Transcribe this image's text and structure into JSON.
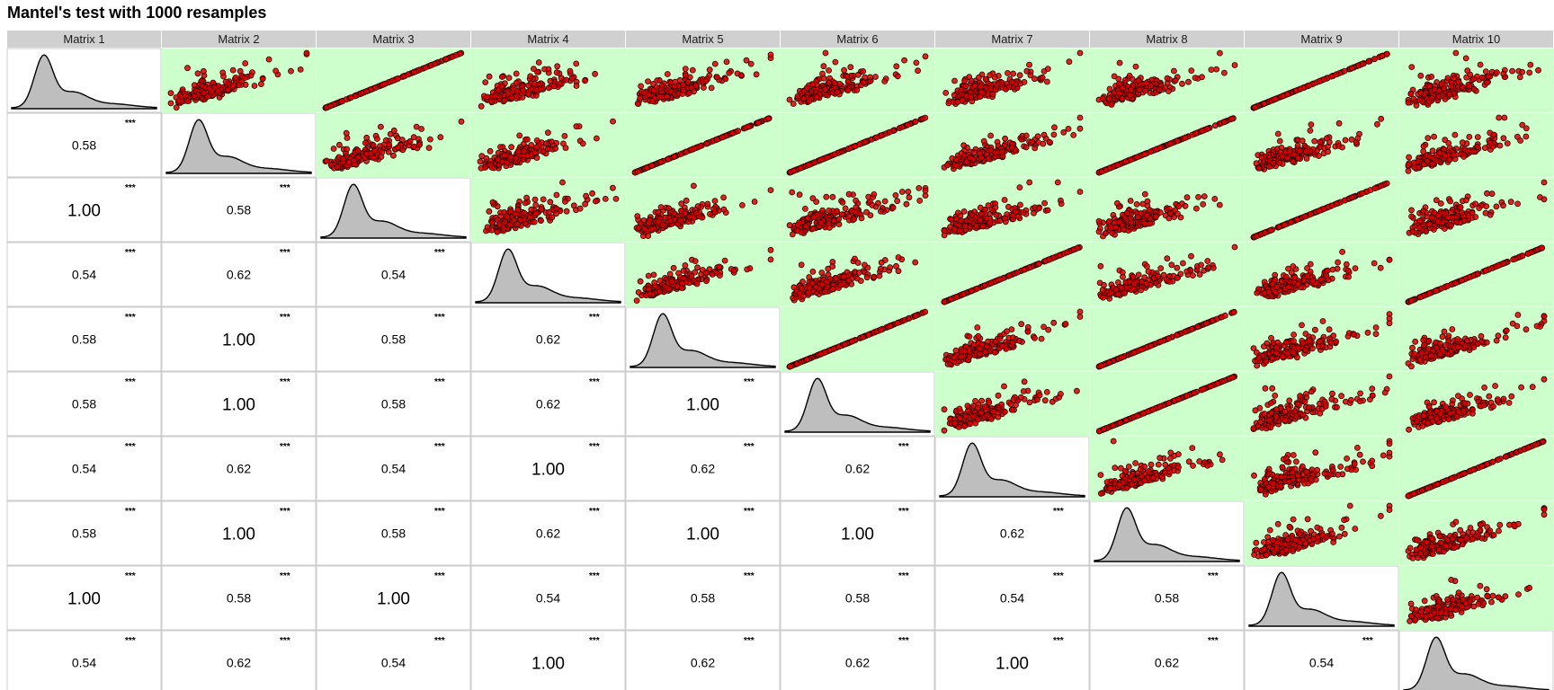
{
  "chart_data": {
    "type": "scatter-matrix",
    "title": "Mantel's test with 1000 resamples",
    "variables": [
      "Matrix 1",
      "Matrix 2",
      "Matrix 3",
      "Matrix 4",
      "Matrix 5",
      "Matrix 6",
      "Matrix 7",
      "Matrix 8",
      "Matrix 9",
      "Matrix 10"
    ],
    "correlations": [
      [
        null,
        null,
        null,
        null,
        null,
        null,
        null,
        null,
        null,
        null
      ],
      [
        0.58,
        null,
        null,
        null,
        null,
        null,
        null,
        null,
        null,
        null
      ],
      [
        1.0,
        0.58,
        null,
        null,
        null,
        null,
        null,
        null,
        null,
        null
      ],
      [
        0.54,
        0.62,
        0.54,
        null,
        null,
        null,
        null,
        null,
        null,
        null
      ],
      [
        0.58,
        1.0,
        0.58,
        0.62,
        null,
        null,
        null,
        null,
        null,
        null
      ],
      [
        0.58,
        1.0,
        0.58,
        0.62,
        1.0,
        null,
        null,
        null,
        null,
        null
      ],
      [
        0.54,
        0.62,
        0.54,
        1.0,
        0.62,
        0.62,
        null,
        null,
        null,
        null
      ],
      [
        0.58,
        1.0,
        0.58,
        0.62,
        1.0,
        1.0,
        0.62,
        null,
        null,
        null
      ],
      [
        1.0,
        0.58,
        1.0,
        0.54,
        0.58,
        0.58,
        0.54,
        0.58,
        null,
        null
      ],
      [
        0.54,
        0.62,
        0.54,
        1.0,
        0.62,
        0.62,
        1.0,
        0.62,
        0.54,
        null
      ]
    ],
    "significance": "***",
    "diagonal": "density",
    "upper": "scatter",
    "upper_significant_background": "#ccffcc",
    "point_color": "#dd0000",
    "density_fill": "#bebebe",
    "strip_color": "#d0d0d0"
  }
}
